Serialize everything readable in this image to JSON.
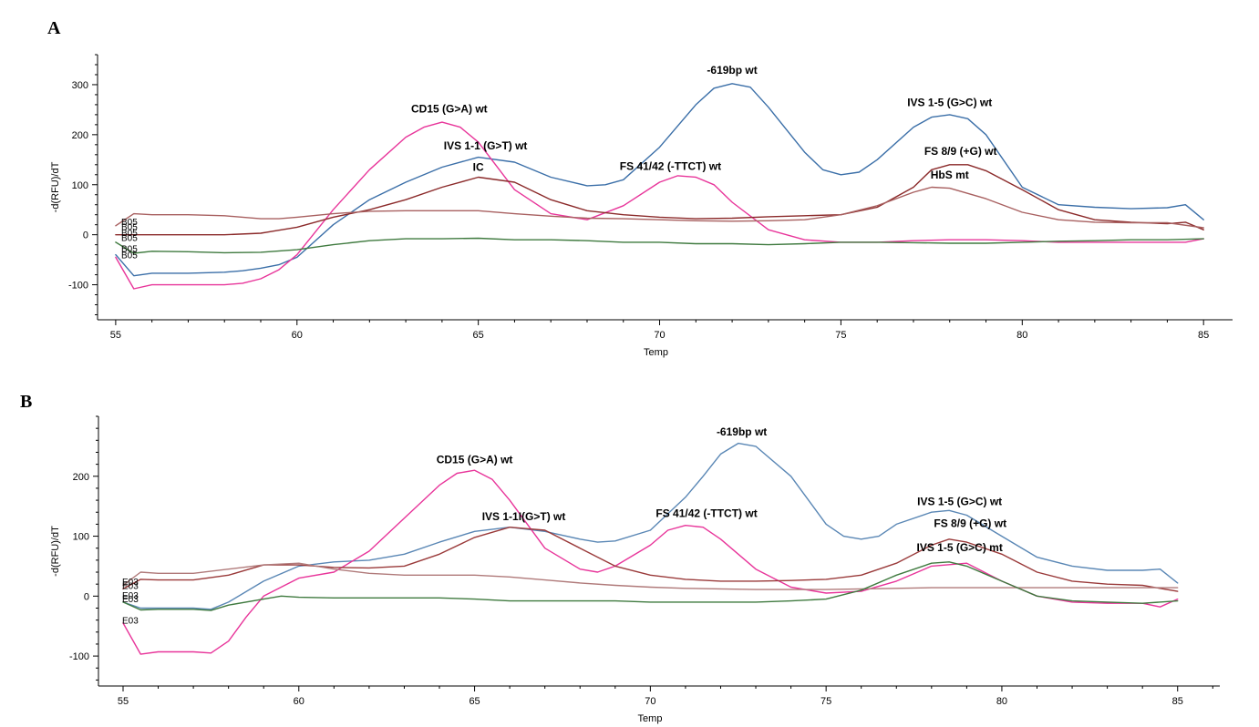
{
  "panels": [
    {
      "letter": "A",
      "chart_data": {
        "type": "line",
        "xlabel": "Temp",
        "ylabel": "-d(RFU)/dT",
        "xlim": [
          54.5,
          85.8
        ],
        "ylim": [
          -170,
          360
        ],
        "x_ticks": [
          55,
          60,
          65,
          70,
          75,
          80,
          85
        ],
        "y_ticks": [
          -100,
          0,
          100,
          200,
          300
        ],
        "well_labels": [
          {
            "text": "B05",
            "y": 27
          },
          {
            "text": "B05",
            "y": 17
          },
          {
            "text": "B05",
            "y": 5
          },
          {
            "text": "B05",
            "y": -5
          },
          {
            "text": "B05",
            "y": -27
          },
          {
            "text": "B05",
            "y": -40
          }
        ],
        "annotations": [
          {
            "text": "-619bp wt",
            "x": 72.0,
            "y": 322
          },
          {
            "text": "CD15 (G>A) wt",
            "x": 64.2,
            "y": 244
          },
          {
            "text": "IVS 1-5 (G>C) wt",
            "x": 78.0,
            "y": 257
          },
          {
            "text": "IVS 1-1 (G>T) wt",
            "x": 65.2,
            "y": 171
          },
          {
            "text": "IC",
            "x": 65.0,
            "y": 128
          },
          {
            "text": "FS 41/42 (-TTCT) wt",
            "x": 70.3,
            "y": 130
          },
          {
            "text": "FS 8/9 (+G) wt",
            "x": 78.3,
            "y": 160
          },
          {
            "text": "HbS mt",
            "x": 78.0,
            "y": 112
          }
        ],
        "series": [
          {
            "color": "#3b6fa8",
            "x": [
              55,
              55.5,
              56,
              57,
              58,
              58.5,
              59,
              59.5,
              60,
              61,
              62,
              63,
              64,
              65,
              66,
              67,
              68,
              68.5,
              69,
              70,
              71,
              71.5,
              72,
              72.5,
              73,
              74,
              74.5,
              75,
              75.5,
              76,
              77,
              77.5,
              78,
              78.5,
              79,
              80,
              81,
              82,
              83,
              84,
              84.5,
              85
            ],
            "y": [
              -40,
              -82,
              -77,
              -77,
              -75,
              -72,
              -67,
              -60,
              -45,
              20,
              70,
              105,
              135,
              155,
              145,
              115,
              98,
              100,
              110,
              175,
              260,
              293,
              302,
              295,
              255,
              165,
              130,
              120,
              125,
              150,
              215,
              235,
              240,
              232,
              200,
              95,
              60,
              55,
              52,
              54,
              60,
              30
            ]
          },
          {
            "color": "#e8359a",
            "x": [
              55,
              55.5,
              56,
              57,
              58,
              58.5,
              59,
              59.5,
              60,
              61,
              62,
              63,
              63.5,
              64,
              64.5,
              65,
              66,
              67,
              68,
              69,
              70,
              70.5,
              71,
              71.5,
              72,
              73,
              74,
              75,
              76,
              77,
              78,
              79,
              80,
              81,
              82,
              83,
              84,
              84.5,
              85
            ],
            "y": [
              -45,
              -108,
              -100,
              -100,
              -100,
              -97,
              -88,
              -70,
              -40,
              50,
              130,
              195,
              215,
              225,
              215,
              185,
              90,
              42,
              30,
              58,
              105,
              118,
              115,
              100,
              65,
              10,
              -10,
              -15,
              -15,
              -12,
              -10,
              -10,
              -12,
              -15,
              -15,
              -15,
              -15,
              -15,
              -8
            ]
          },
          {
            "color": "#8b2a2a",
            "x": [
              55,
              56,
              57,
              58,
              59,
              60,
              61,
              62,
              63,
              64,
              65,
              66,
              67,
              68,
              69,
              70,
              71,
              72,
              73,
              74,
              75,
              76,
              77,
              77.5,
              78,
              78.5,
              79,
              80,
              81,
              82,
              83,
              84,
              84.5,
              85
            ],
            "y": [
              0,
              0,
              0,
              0,
              3,
              15,
              35,
              50,
              70,
              95,
              115,
              105,
              70,
              48,
              40,
              35,
              32,
              33,
              36,
              38,
              40,
              55,
              95,
              130,
              140,
              140,
              128,
              90,
              50,
              30,
              25,
              22,
              25,
              10
            ]
          },
          {
            "color": "#a86060",
            "x": [
              55,
              55.5,
              56,
              57,
              58,
              59,
              59.5,
              60,
              61,
              62,
              63,
              64,
              65,
              66,
              67,
              68,
              69,
              70,
              71,
              72,
              73,
              74,
              75,
              76,
              77,
              77.5,
              78,
              79,
              80,
              81,
              82,
              83,
              84,
              85
            ],
            "y": [
              18,
              42,
              40,
              40,
              38,
              32,
              32,
              35,
              42,
              47,
              48,
              48,
              48,
              42,
              37,
              33,
              32,
              30,
              28,
              27,
              28,
              30,
              40,
              58,
              85,
              95,
              93,
              72,
              45,
              30,
              25,
              24,
              24,
              14
            ]
          },
          {
            "color": "#3f7a3f",
            "x": [
              55,
              55.5,
              56,
              57,
              58,
              59,
              60,
              61,
              62,
              63,
              64,
              65,
              66,
              67,
              68,
              69,
              70,
              71,
              72,
              73,
              74,
              75,
              76,
              77,
              78,
              79,
              80,
              81,
              82,
              83,
              84,
              85
            ],
            "y": [
              -15,
              -37,
              -33,
              -34,
              -36,
              -35,
              -30,
              -20,
              -12,
              -8,
              -8,
              -7,
              -10,
              -10,
              -12,
              -15,
              -15,
              -18,
              -18,
              -20,
              -18,
              -15,
              -15,
              -16,
              -17,
              -17,
              -15,
              -13,
              -12,
              -10,
              -10,
              -8
            ]
          }
        ]
      }
    },
    {
      "letter": "B",
      "chart_data": {
        "type": "line",
        "xlabel": "Temp",
        "ylabel": "-d(RFU)/dT",
        "xlim": [
          54.3,
          86.2
        ],
        "ylim": [
          -150,
          300
        ],
        "x_ticks": [
          55,
          60,
          65,
          70,
          75,
          80,
          85
        ],
        "y_ticks": [
          -100,
          0,
          100,
          200
        ],
        "well_labels": [
          {
            "text": "E03",
            "y": 25
          },
          {
            "text": "E03",
            "y": 18
          },
          {
            "text": "E03",
            "y": 2
          },
          {
            "text": "E03",
            "y": -4
          },
          {
            "text": "E03",
            "y": -40
          }
        ],
        "annotations": [
          {
            "text": "-619bp wt",
            "x": 72.6,
            "y": 268
          },
          {
            "text": "CD15 (G>A) wt",
            "x": 65.0,
            "y": 222
          },
          {
            "text": "IVS 1-1I(G>T) wt",
            "x": 66.4,
            "y": 127
          },
          {
            "text": "FS 41/42 (-TTCT) wt",
            "x": 71.6,
            "y": 132
          },
          {
            "text": "IVS 1-5 (G>C) wt",
            "x": 78.8,
            "y": 152
          },
          {
            "text": "FS 8/9 (+G) wt",
            "x": 79.1,
            "y": 115
          },
          {
            "text": "IVS 1-5 (G>C) mt",
            "x": 78.8,
            "y": 75
          }
        ],
        "series": [
          {
            "color": "#5a87b5",
            "x": [
              55,
              55.5,
              56,
              57,
              57.5,
              58,
              59,
              60,
              61,
              62,
              63,
              64,
              65,
              66,
              67,
              68,
              68.5,
              69,
              70,
              71,
              71.5,
              72,
              72.5,
              73,
              74,
              75,
              75.5,
              76,
              76.5,
              77,
              78,
              78.5,
              79,
              80,
              81,
              82,
              83,
              84,
              84.5,
              85
            ],
            "y": [
              -10,
              -20,
              -20,
              -20,
              -22,
              -10,
              25,
              50,
              57,
              60,
              70,
              90,
              108,
              115,
              108,
              95,
              90,
              92,
              110,
              165,
              200,
              237,
              255,
              250,
              200,
              120,
              100,
              95,
              100,
              120,
              140,
              143,
              135,
              100,
              65,
              50,
              43,
              43,
              45,
              22
            ]
          },
          {
            "color": "#e8359a",
            "x": [
              55,
              55.5,
              56,
              57,
              57.5,
              58,
              58.5,
              59,
              60,
              61,
              62,
              63,
              64,
              64.5,
              65,
              65.5,
              66,
              67,
              68,
              68.5,
              69,
              70,
              70.5,
              71,
              71.5,
              72,
              73,
              74,
              75,
              76,
              77,
              78,
              79,
              80,
              81,
              82,
              83,
              84,
              84.5,
              85
            ],
            "y": [
              -45,
              -97,
              -93,
              -93,
              -95,
              -75,
              -35,
              0,
              30,
              40,
              75,
              130,
              185,
              205,
              210,
              195,
              160,
              80,
              45,
              40,
              50,
              85,
              110,
              118,
              115,
              95,
              45,
              15,
              5,
              8,
              25,
              50,
              55,
              25,
              0,
              -10,
              -12,
              -12,
              -18,
              -5
            ]
          },
          {
            "color": "#9a3a3a",
            "x": [
              55,
              55.5,
              56,
              57,
              58,
              59,
              60,
              61,
              62,
              63,
              64,
              65,
              66,
              67,
              68,
              69,
              70,
              71,
              72,
              73,
              74,
              75,
              76,
              77,
              78,
              78.5,
              79,
              80,
              81,
              82,
              83,
              84,
              85
            ],
            "y": [
              12,
              28,
              27,
              27,
              35,
              52,
              52,
              48,
              47,
              50,
              70,
              98,
              115,
              110,
              80,
              50,
              35,
              28,
              25,
              25,
              26,
              28,
              35,
              55,
              85,
              95,
              90,
              70,
              40,
              25,
              20,
              18,
              8
            ]
          },
          {
            "color": "#b07a7a",
            "x": [
              55,
              55.5,
              56,
              57,
              58,
              59,
              60,
              61,
              62,
              63,
              64,
              65,
              66,
              67,
              68,
              69,
              70,
              71,
              72,
              73,
              74,
              75,
              76,
              77,
              78,
              79,
              80,
              81,
              82,
              83,
              84,
              85
            ],
            "y": [
              18,
              40,
              38,
              38,
              45,
              52,
              55,
              45,
              38,
              35,
              35,
              35,
              32,
              27,
              22,
              18,
              15,
              13,
              12,
              11,
              11,
              11,
              12,
              13,
              14,
              14,
              14,
              14,
              14,
              14,
              14,
              14
            ]
          },
          {
            "color": "#3f7a3f",
            "x": [
              55,
              55.5,
              56,
              57,
              57.5,
              58,
              59,
              59.5,
              60,
              61,
              62,
              63,
              64,
              65,
              66,
              67,
              68,
              69,
              70,
              71,
              72,
              73,
              74,
              75,
              76,
              77,
              78,
              78.5,
              79,
              80,
              81,
              82,
              83,
              84,
              85
            ],
            "y": [
              -10,
              -23,
              -22,
              -22,
              -24,
              -15,
              -5,
              0,
              -2,
              -3,
              -3,
              -3,
              -3,
              -5,
              -8,
              -8,
              -8,
              -8,
              -10,
              -10,
              -10,
              -10,
              -8,
              -5,
              10,
              35,
              55,
              57,
              50,
              25,
              0,
              -8,
              -10,
              -12,
              -8
            ]
          }
        ]
      }
    }
  ]
}
